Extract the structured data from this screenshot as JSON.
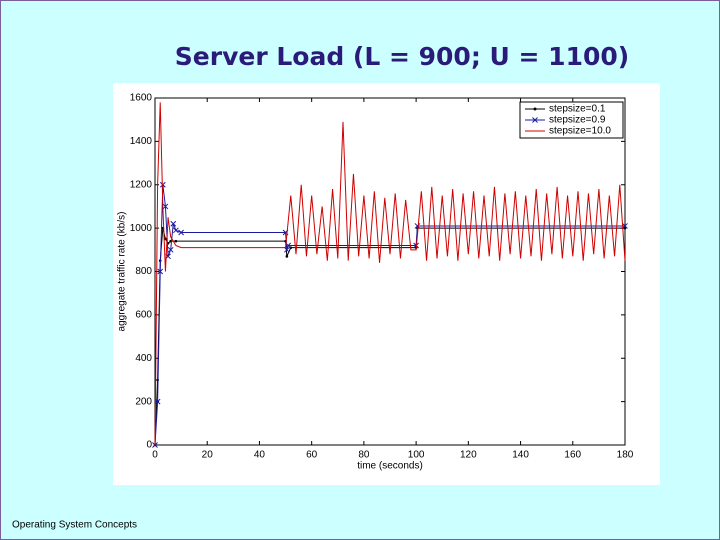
{
  "chart_data": {
    "type": "line",
    "title": "Server Load (L = 900; U = 1100)",
    "footer": "Operating System Concepts",
    "xlabel": "time (seconds)",
    "ylabel": "aggregate traffic rate (kb/s)",
    "xlim": [
      0,
      180
    ],
    "xticks": [
      0,
      20,
      40,
      60,
      80,
      100,
      120,
      140,
      160,
      180
    ],
    "ylim": [
      0,
      1600
    ],
    "yticks": [
      0,
      200,
      400,
      600,
      800,
      1000,
      1200,
      1400,
      1600
    ],
    "legend": "upper right",
    "series": [
      {
        "name": "stepsize=0.1",
        "color": "#000000",
        "marker": "dot",
        "x": [
          0,
          1,
          2,
          3,
          4,
          5,
          6,
          8,
          50,
          50.5,
          52,
          100,
          100.5,
          180
        ],
        "values": [
          0,
          300,
          850,
          1000,
          950,
          930,
          940,
          940,
          940,
          870,
          910,
          910,
          1000,
          1000
        ]
      },
      {
        "name": "stepsize=0.9",
        "color": "#1a1aa0",
        "marker": "x",
        "x": [
          0,
          1,
          2,
          3,
          4,
          5,
          6,
          7,
          8,
          10,
          50,
          50.5,
          51,
          100,
          100.5,
          180
        ],
        "values": [
          0,
          200,
          800,
          1200,
          1100,
          870,
          900,
          1020,
          990,
          980,
          980,
          900,
          920,
          920,
          1010,
          1010
        ]
      },
      {
        "name": "stepsize=10.0",
        "color": "#d00000",
        "marker": "none",
        "x": [
          0,
          1,
          2,
          3,
          4,
          5,
          6,
          8,
          10,
          50,
          52,
          54,
          56,
          58,
          60,
          62,
          64,
          66,
          68,
          70,
          72,
          74,
          76,
          78,
          80,
          82,
          84,
          86,
          88,
          90,
          92,
          94,
          96,
          98,
          100,
          102,
          104,
          106,
          108,
          110,
          112,
          114,
          116,
          118,
          120,
          122,
          124,
          126,
          128,
          130,
          132,
          134,
          136,
          138,
          140,
          142,
          144,
          146,
          148,
          150,
          152,
          154,
          156,
          158,
          160,
          162,
          164,
          166,
          168,
          170,
          172,
          174,
          176,
          178,
          180
        ],
        "values": [
          0,
          1200,
          1580,
          1100,
          800,
          1050,
          960,
          920,
          910,
          910,
          1150,
          880,
          1200,
          870,
          1150,
          880,
          1100,
          850,
          1180,
          860,
          1490,
          850,
          1250,
          870,
          1150,
          860,
          1170,
          840,
          1140,
          880,
          1160,
          860,
          1130,
          900,
          900,
          1170,
          850,
          1190,
          860,
          1150,
          870,
          1180,
          850,
          1160,
          880,
          1170,
          860,
          1150,
          870,
          1190,
          850,
          1160,
          880,
          1170,
          860,
          1150,
          870,
          1180,
          850,
          1160,
          880,
          1190,
          860,
          1150,
          870,
          1170,
          850,
          1160,
          880,
          1180,
          860,
          1150,
          870,
          1200,
          850
        ]
      }
    ]
  }
}
